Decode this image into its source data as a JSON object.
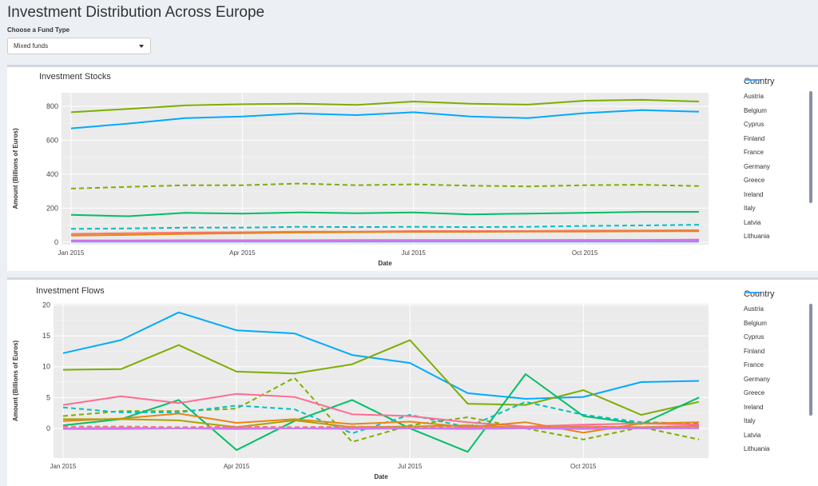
{
  "page": {
    "title": "Investment Distribution Across Europe"
  },
  "fund_select": {
    "label": "Choose a Fund Type",
    "value": "Mixed funds"
  },
  "legend": {
    "title": "Country",
    "entries": [
      {
        "name": "Austria",
        "color": "#F8766D",
        "dash": "dashed"
      },
      {
        "name": "Belgium",
        "color": "#E58700",
        "dash": "solid"
      },
      {
        "name": "Cyprus",
        "color": "#C99800",
        "dash": "dashed"
      },
      {
        "name": "Finland",
        "color": "#A3A500",
        "dash": "solid"
      },
      {
        "name": "France",
        "color": "#6BB100",
        "dash": "dashed"
      },
      {
        "name": "Germany",
        "color": "#00BA38",
        "dash": "solid"
      },
      {
        "name": "Greece",
        "color": "#00BF7D",
        "dash": "dashed"
      },
      {
        "name": "Ireland",
        "color": "#00C0AF",
        "dash": "solid"
      },
      {
        "name": "Italy",
        "color": "#00BCD8",
        "dash": "dashed"
      },
      {
        "name": "Latvia",
        "color": "#00B0F6",
        "dash": "solid"
      },
      {
        "name": "Lithuania",
        "color": "#619CFF",
        "dash": "dashed"
      }
    ]
  },
  "chart_data": [
    {
      "type": "line",
      "title": "Investment Stocks",
      "xlabel": "Date",
      "ylabel": "Amount (Billions of Euros)",
      "ylim": [
        -15,
        880
      ],
      "yticks": [
        0,
        200,
        400,
        600,
        800
      ],
      "xlim": [
        "2015-01",
        "2015-12"
      ],
      "xticks": [
        {
          "label": "Jan 2015",
          "x": "2015-01"
        },
        {
          "label": "Apr 2015",
          "x": "2015-04"
        },
        {
          "label": "Jul 2015",
          "x": "2015-07"
        },
        {
          "label": "Oct 2015",
          "x": "2015-10"
        }
      ],
      "x": [
        "2015-01",
        "2015-02",
        "2015-03",
        "2015-04",
        "2015-05",
        "2015-06",
        "2015-07",
        "2015-08",
        "2015-09",
        "2015-10",
        "2015-11",
        "2015-12"
      ],
      "series": [
        {
          "color": "#7CAE00",
          "dash": "solid",
          "values": [
            765,
            785,
            805,
            812,
            815,
            808,
            828,
            815,
            810,
            833,
            838,
            828
          ]
        },
        {
          "color": "#00A9FF",
          "dash": "solid",
          "values": [
            670,
            698,
            730,
            740,
            758,
            748,
            765,
            740,
            730,
            760,
            778,
            768
          ]
        },
        {
          "color": "#7CAE00",
          "dash": "dashed",
          "values": [
            315,
            325,
            335,
            335,
            345,
            335,
            340,
            332,
            328,
            335,
            338,
            330
          ]
        },
        {
          "color": "#00BE67",
          "dash": "solid",
          "values": [
            160,
            152,
            172,
            168,
            175,
            170,
            175,
            163,
            168,
            172,
            178,
            178
          ]
        },
        {
          "color": "#00BFC4",
          "dash": "dashed",
          "values": [
            78,
            80,
            85,
            85,
            90,
            88,
            90,
            88,
            90,
            95,
            98,
            102
          ]
        },
        {
          "color": "#F8766D",
          "dash": "solid",
          "values": [
            48,
            52,
            56,
            58,
            62,
            62,
            65,
            65,
            65,
            68,
            68,
            70
          ]
        },
        {
          "color": "#E68613",
          "dash": "solid",
          "values": [
            38,
            42,
            48,
            52,
            56,
            58,
            60,
            60,
            62,
            62,
            63,
            64
          ]
        },
        {
          "color": "#FF61CC",
          "dash": "solid",
          "values": [
            10,
            10,
            11,
            11,
            11,
            12,
            12,
            12,
            12,
            13,
            13,
            14
          ]
        },
        {
          "color": "#C77CFF",
          "dash": "solid",
          "values": [
            5,
            5,
            5,
            5,
            5,
            5,
            6,
            6,
            6,
            6,
            6,
            6
          ]
        },
        {
          "color": "#8494FF",
          "dash": "solid",
          "values": [
            3,
            3,
            3,
            3,
            3,
            3,
            3,
            3,
            3,
            3,
            3,
            3
          ]
        }
      ]
    },
    {
      "type": "line",
      "title": "Investment Flows",
      "xlabel": "Date",
      "ylabel": "Amount (Billions of Euros)",
      "ylim": [
        -4.8,
        20.2
      ],
      "yticks": [
        0,
        5,
        10,
        15,
        20
      ],
      "xlim": [
        "2015-01",
        "2015-12"
      ],
      "xticks": [
        {
          "label": "Jan 2015",
          "x": "2015-01"
        },
        {
          "label": "Apr 2015",
          "x": "2015-04"
        },
        {
          "label": "Jul 2015",
          "x": "2015-07"
        },
        {
          "label": "Oct 2015",
          "x": "2015-10"
        }
      ],
      "x": [
        "2015-01",
        "2015-02",
        "2015-03",
        "2015-04",
        "2015-05",
        "2015-06",
        "2015-07",
        "2015-08",
        "2015-09",
        "2015-10",
        "2015-11",
        "2015-12"
      ],
      "series": [
        {
          "color": "#00A9FF",
          "dash": "solid",
          "values": [
            12.2,
            14.3,
            18.8,
            15.9,
            15.4,
            11.9,
            10.6,
            5.7,
            4.8,
            5.1,
            7.5,
            7.7
          ]
        },
        {
          "color": "#7CAE00",
          "dash": "solid",
          "values": [
            9.5,
            9.6,
            13.5,
            9.2,
            8.9,
            10.4,
            14.3,
            4.0,
            3.8,
            6.2,
            2.2,
            4.3
          ]
        },
        {
          "color": "#7CAE00",
          "dash": "dashed",
          "values": [
            2.0,
            2.8,
            2.8,
            3.2,
            8.2,
            -2.2,
            0.5,
            1.8,
            0.0,
            -1.8,
            0.2,
            -1.8
          ]
        },
        {
          "color": "#00BE67",
          "dash": "solid",
          "values": [
            0.5,
            1.5,
            4.6,
            -3.5,
            1.2,
            4.6,
            0.0,
            -3.8,
            8.8,
            2.0,
            0.7,
            5.0
          ]
        },
        {
          "color": "#00BFC4",
          "dash": "dashed",
          "values": [
            3.4,
            2.6,
            2.6,
            3.7,
            3.1,
            -0.8,
            2.2,
            0.2,
            4.3,
            2.2,
            1.0,
            0.8
          ]
        },
        {
          "color": "#FF6C91",
          "dash": "solid",
          "values": [
            3.8,
            5.2,
            4.1,
            5.6,
            5.1,
            2.3,
            2.0,
            1.0,
            0.3,
            0.6,
            0.8,
            0.6
          ]
        },
        {
          "color": "#E68613",
          "dash": "solid",
          "values": [
            1.2,
            1.6,
            2.4,
            0.9,
            1.5,
            0.7,
            1.1,
            0.2,
            1.0,
            -0.7,
            0.8,
            1.0
          ]
        },
        {
          "color": "#ABA300",
          "dash": "solid",
          "values": [
            1.5,
            1.5,
            1.3,
            0.2,
            1.3,
            0.2,
            0.3,
            0.5,
            0.1,
            0.3,
            0.2,
            0.4
          ]
        },
        {
          "color": "#F8766D",
          "dash": "dashed",
          "values": [
            0.3,
            0.3,
            0.2,
            0.3,
            0.2,
            0.3,
            0.2,
            0.3,
            0.2,
            0.3,
            0.2,
            0.3
          ]
        },
        {
          "color": "#FF61CC",
          "dash": "solid",
          "values": [
            0.0,
            0.1,
            0.0,
            0.1,
            0.0,
            0.1,
            0.0,
            0.1,
            0.0,
            0.1,
            0.0,
            0.1
          ]
        },
        {
          "color": "#C77CFF",
          "dash": "solid",
          "values": [
            -0.1,
            -0.1,
            0.0,
            -0.1,
            0.0,
            -0.1,
            0.0,
            -0.1,
            0.0,
            -0.1,
            0.0,
            0.0
          ]
        }
      ]
    }
  ]
}
